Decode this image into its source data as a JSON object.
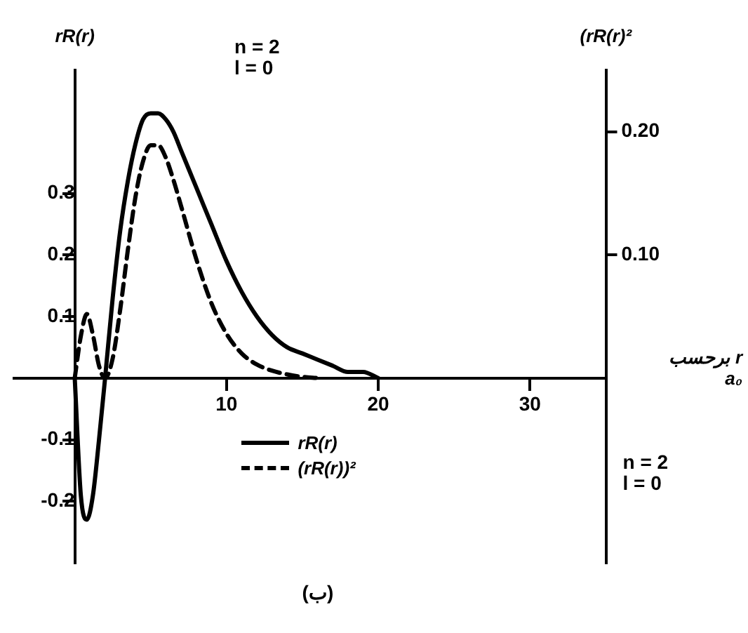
{
  "chart_data": {
    "type": "line",
    "xlabel": "r برحسب a₀",
    "ylabel": "rR(r)",
    "y2label": "(rR(r)²",
    "xlim": [
      -4,
      35
    ],
    "xticks": [
      10,
      20,
      30
    ],
    "ylim": [
      -0.3,
      0.5
    ],
    "yticks": [
      -0.2,
      -0.1,
      0.1,
      0.2,
      0.3
    ],
    "y2lim": [
      -0.15,
      0.25
    ],
    "y2ticks": [
      {
        "value": 0.1,
        "label": "0.10"
      },
      {
        "value": 0.2,
        "label": "0.20"
      }
    ],
    "series": [
      {
        "name": "rR(r)",
        "color": "#000000",
        "line_style": "solid",
        "x": [
          0,
          0.4,
          0.8,
          1.2,
          1.6,
          2,
          2.5,
          3,
          3.5,
          4,
          4.5,
          5,
          5.5,
          6,
          6.5,
          7,
          8,
          9,
          10,
          11,
          12,
          13,
          14,
          15,
          16,
          17,
          18,
          19,
          20
        ],
        "values": [
          0,
          -0.19,
          -0.23,
          -0.19,
          -0.1,
          0,
          0.13,
          0.24,
          0.32,
          0.38,
          0.42,
          0.43,
          0.43,
          0.42,
          0.4,
          0.37,
          0.31,
          0.25,
          0.19,
          0.14,
          0.1,
          0.07,
          0.05,
          0.04,
          0.03,
          0.02,
          0.01,
          0.01,
          0
        ]
      },
      {
        "name": "(rR(r))²",
        "color": "#000000",
        "line_style": "dashed",
        "axis": "y2",
        "x": [
          0,
          0.4,
          0.8,
          1.2,
          1.6,
          2,
          2.5,
          3,
          3.5,
          4,
          4.5,
          5,
          5.5,
          6,
          6.5,
          7,
          8,
          9,
          10,
          11,
          12,
          13,
          14,
          15,
          16
        ],
        "values": [
          0,
          0.034,
          0.052,
          0.035,
          0.01,
          0,
          0.016,
          0.056,
          0.104,
          0.147,
          0.176,
          0.189,
          0.189,
          0.179,
          0.161,
          0.14,
          0.097,
          0.061,
          0.036,
          0.02,
          0.011,
          0.006,
          0.003,
          0.001,
          0
        ]
      }
    ],
    "grid": false,
    "legend": "bottom",
    "marker": "none",
    "annotations": [
      "n = 2\nl = 0",
      "n = 2\nl = 0",
      "(ب)"
    ]
  }
}
